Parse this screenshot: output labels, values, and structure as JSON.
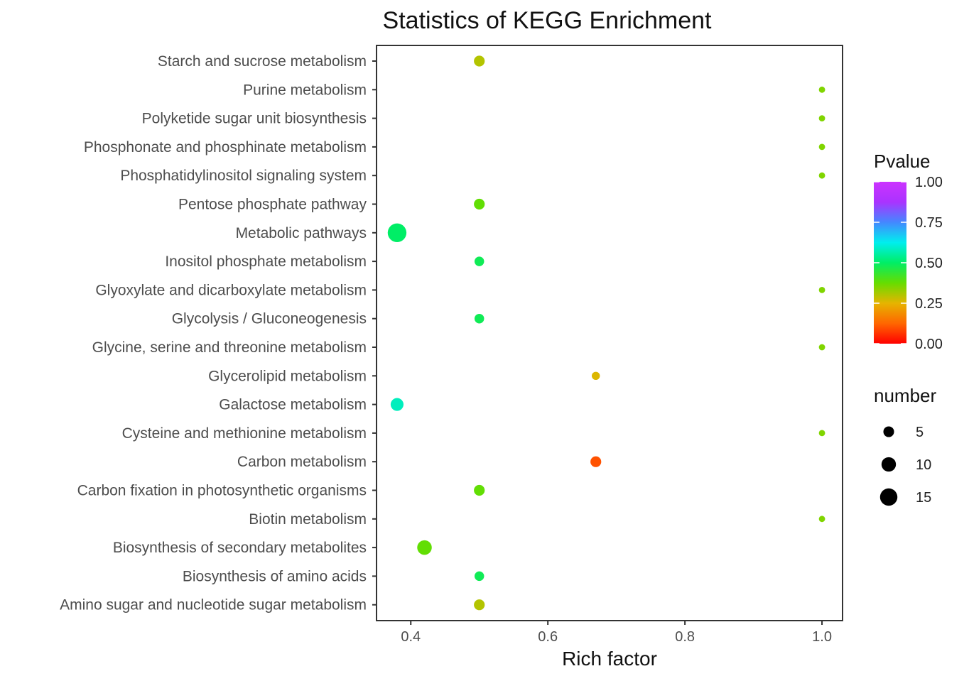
{
  "chart_data": {
    "type": "scatter",
    "title": "Statistics of KEGG Enrichment",
    "xlabel": "Rich factor",
    "ylabel": "",
    "xlim": [
      0.35,
      1.03
    ],
    "xticks": [
      0.4,
      0.6,
      0.8,
      1.0
    ],
    "xtick_labels": [
      "0.4",
      "0.6",
      "0.8",
      "1.0"
    ],
    "grid": false,
    "categories": [
      "Starch and sucrose metabolism",
      "Purine metabolism",
      "Polyketide sugar unit biosynthesis",
      "Phosphonate and phosphinate metabolism",
      "Phosphatidylinositol signaling system",
      "Pentose phosphate pathway",
      "Metabolic pathways",
      "Inositol phosphate metabolism",
      "Glyoxylate and dicarboxylate metabolism",
      "Glycolysis / Gluconeogenesis",
      "Glycine, serine and threonine metabolism",
      "Glycerolipid metabolism",
      "Galactose metabolism",
      "Cysteine and methionine metabolism",
      "Carbon metabolism",
      "Carbon fixation in photosynthetic organisms",
      "Biotin metabolism",
      "Biosynthesis of secondary metabolites",
      "Biosynthesis of amino acids",
      "Amino sugar and nucleotide sugar metabolism"
    ],
    "points": [
      {
        "category": "Starch and sucrose metabolism",
        "x": 0.5,
        "number": 4,
        "pvalue": 0.3
      },
      {
        "category": "Purine metabolism",
        "x": 1.0,
        "number": 1,
        "pvalue": 0.35
      },
      {
        "category": "Polyketide sugar unit biosynthesis",
        "x": 1.0,
        "number": 1,
        "pvalue": 0.35
      },
      {
        "category": "Phosphonate and phosphinate metabolism",
        "x": 1.0,
        "number": 1,
        "pvalue": 0.35
      },
      {
        "category": "Phosphatidylinositol signaling system",
        "x": 1.0,
        "number": 1,
        "pvalue": 0.35
      },
      {
        "category": "Pentose phosphate pathway",
        "x": 0.5,
        "number": 4,
        "pvalue": 0.38
      },
      {
        "category": "Metabolic pathways",
        "x": 0.38,
        "number": 14,
        "pvalue": 0.5
      },
      {
        "category": "Inositol phosphate metabolism",
        "x": 0.5,
        "number": 3,
        "pvalue": 0.48
      },
      {
        "category": "Glyoxylate and dicarboxylate metabolism",
        "x": 1.0,
        "number": 1,
        "pvalue": 0.35
      },
      {
        "category": "Glycolysis / Gluconeogenesis",
        "x": 0.5,
        "number": 3,
        "pvalue": 0.48
      },
      {
        "category": "Glycine, serine and threonine metabolism",
        "x": 1.0,
        "number": 1,
        "pvalue": 0.35
      },
      {
        "category": "Glycerolipid metabolism",
        "x": 0.67,
        "number": 2,
        "pvalue": 0.26
      },
      {
        "category": "Galactose metabolism",
        "x": 0.38,
        "number": 6,
        "pvalue": 0.58
      },
      {
        "category": "Cysteine and methionine metabolism",
        "x": 1.0,
        "number": 1,
        "pvalue": 0.35
      },
      {
        "category": "Carbon metabolism",
        "x": 0.67,
        "number": 4,
        "pvalue": 0.1
      },
      {
        "category": "Carbon fixation in photosynthetic organisms",
        "x": 0.5,
        "number": 4,
        "pvalue": 0.38
      },
      {
        "category": "Biotin metabolism",
        "x": 1.0,
        "number": 1,
        "pvalue": 0.35
      },
      {
        "category": "Biosynthesis of secondary metabolites",
        "x": 0.42,
        "number": 8,
        "pvalue": 0.38
      },
      {
        "category": "Biosynthesis of amino acids",
        "x": 0.5,
        "number": 3,
        "pvalue": 0.48
      },
      {
        "category": "Amino sugar and nucleotide sugar metabolism",
        "x": 0.5,
        "number": 4,
        "pvalue": 0.3
      }
    ],
    "color_legend": {
      "title": "Pvalue",
      "range": [
        0.0,
        1.0
      ],
      "ticks": [
        1.0,
        0.75,
        0.5,
        0.25,
        0.0
      ],
      "tick_labels": [
        "1.00",
        "0.75",
        "0.50",
        "0.25",
        "0.00"
      ],
      "gradient": [
        "#ff0000",
        "#ff6600",
        "#e6b400",
        "#66dd00",
        "#00ee66",
        "#00eeee",
        "#4488ff",
        "#aa33ff",
        "#cc33ff"
      ]
    },
    "size_legend": {
      "title": "number",
      "values": [
        5,
        10,
        15
      ],
      "labels": [
        "5",
        "10",
        "15"
      ]
    },
    "legend_position": "right"
  }
}
